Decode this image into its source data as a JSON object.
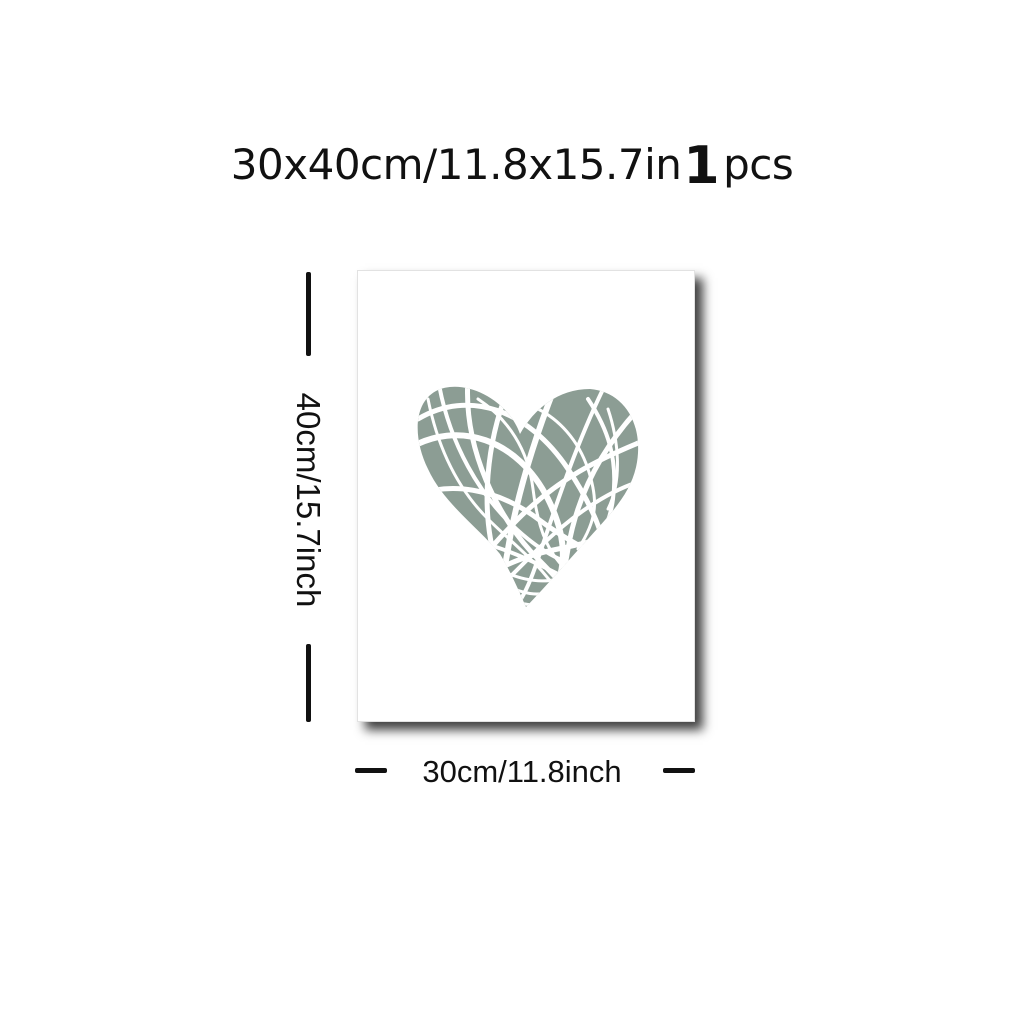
{
  "title": {
    "size_text": "30x40cm/11.8x15.7in",
    "count": "1",
    "unit": "pcs"
  },
  "dimensions": {
    "height_label": "40cm/15.7inch",
    "width_label": "30cm/11.8inch"
  },
  "colors": {
    "heart": "#8c9d94",
    "poster": "#ffffff",
    "text": "#111111"
  },
  "artwork": {
    "icon": "heart-icon"
  }
}
